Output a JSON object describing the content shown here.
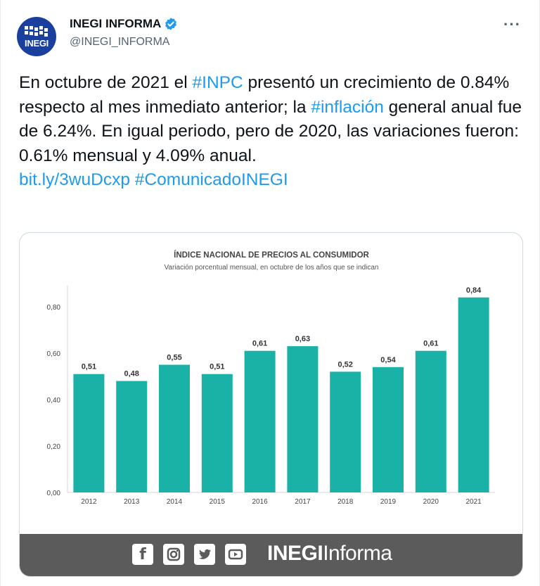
{
  "account": {
    "display_name": "INEGI INFORMA",
    "handle": "@INEGI_INFORMA",
    "avatar_text": "INEGI",
    "more_label": "···"
  },
  "tweet": {
    "seg1": "En octubre de 2021 el ",
    "hashtag1": "#INPC",
    "seg2": " presentó un crecimiento de 0.84% respecto al mes inmediato anterior; la ",
    "hashtag2": "#inflación",
    "seg3": " general anual fue de 6.24%. En igual periodo, pero de 2020, las variaciones fueron: 0.61% mensual y 4.09% anual.",
    "link": "bit.ly/3wuDcxp",
    "hashtag3": "#ComunicadoINEGI"
  },
  "chart_data": {
    "type": "bar",
    "title": "ÍNDICE NACIONAL DE PRECIOS AL CONSUMIDOR",
    "subtitle": "Variación porcentual mensual, en octubre de los años que se indican",
    "categories": [
      "2012",
      "2013",
      "2014",
      "2015",
      "2016",
      "2017",
      "2018",
      "2019",
      "2020",
      "2021"
    ],
    "values": [
      0.51,
      0.48,
      0.55,
      0.51,
      0.61,
      0.63,
      0.52,
      0.54,
      0.61,
      0.84
    ],
    "value_labels": [
      "0,51",
      "0,48",
      "0,55",
      "0,51",
      "0,61",
      "0,63",
      "0,52",
      "0,54",
      "0,61",
      "0,84"
    ],
    "ylim": [
      0,
      0.8
    ],
    "yticks": [
      0,
      0.2,
      0.4,
      0.6,
      0.8
    ],
    "ytick_labels": [
      "0,00",
      "0,20",
      "0,40",
      "0,60",
      "0,80"
    ],
    "bar_color": "#1ab1a6",
    "grid": false
  },
  "footer": {
    "icons": [
      "facebook-icon",
      "instagram-icon",
      "twitter-icon",
      "youtube-icon"
    ],
    "brand_bold": "INEGI",
    "brand_light": "Informa"
  },
  "colors": {
    "link": "#1d9bf0",
    "footer_bg": "#5b5b5b",
    "avatar_bg": "#1a3f9c",
    "verified": "#1d9bf0"
  }
}
